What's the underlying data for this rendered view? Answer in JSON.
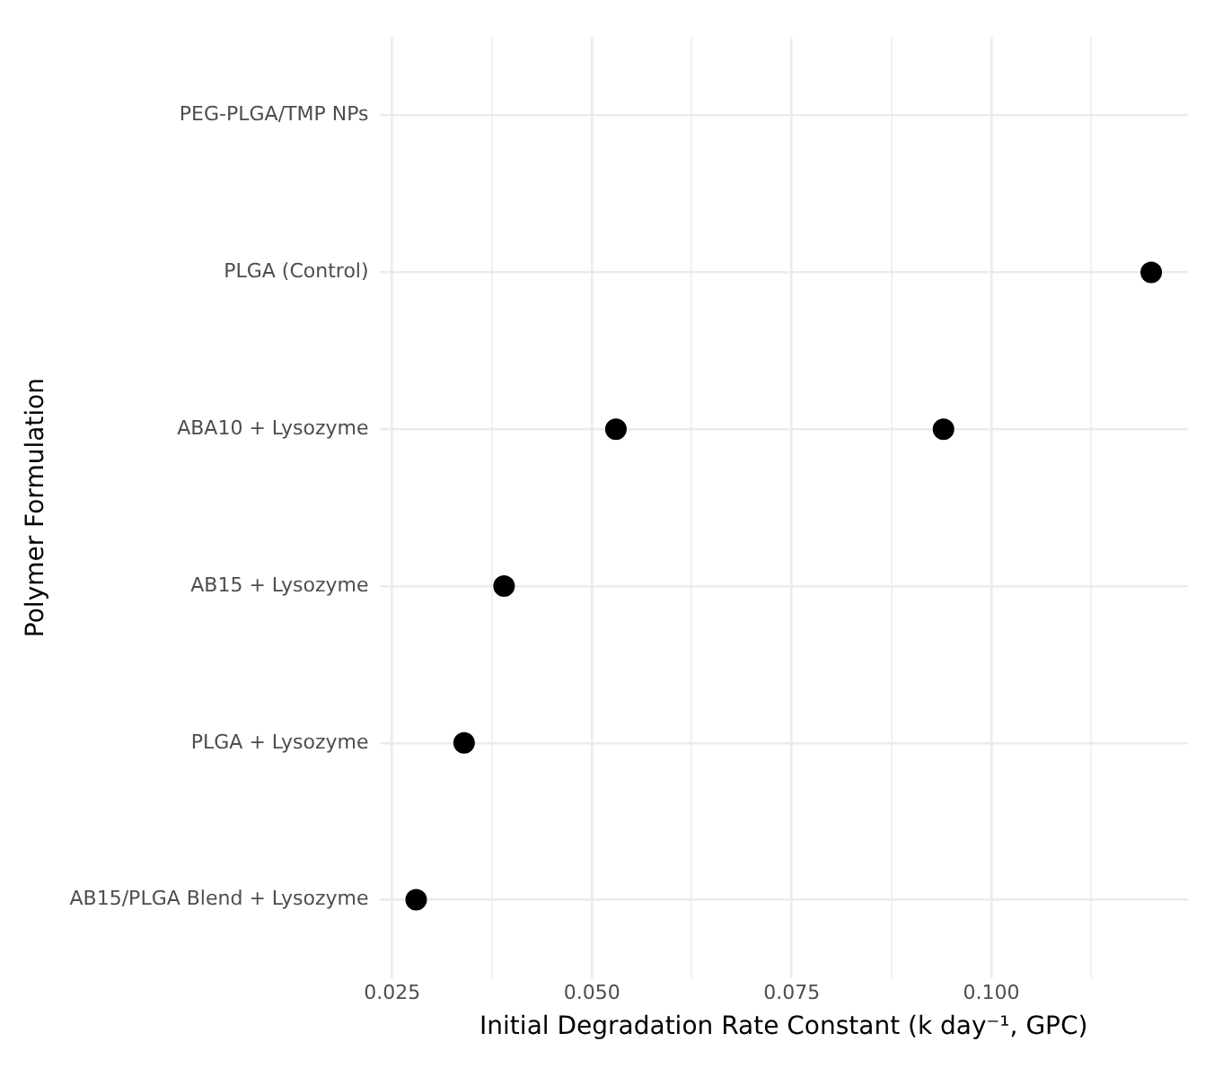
{
  "chart_data": {
    "type": "scatter",
    "orientation": "horizontal",
    "xlabel": "Initial Degradation Rate Constant (k day⁻¹, GPC)",
    "ylabel": "Polymer Formulation",
    "categories": [
      "PEG-PLGA/TMP NPs",
      "PLGA (Control)",
      "ABA10 + Lysozyme",
      "AB15 + Lysozyme",
      "PLGA + Lysozyme",
      "AB15/PLGA Blend + Lysozyme"
    ],
    "series": [
      {
        "color": "#000000",
        "values": [
          null,
          0.12,
          0.053,
          0.039,
          0.034,
          0.028
        ]
      },
      {
        "color": "#000000",
        "values": [
          null,
          null,
          0.094,
          null,
          null,
          null
        ]
      }
    ],
    "xlim": [
      0.0234,
      0.1246
    ],
    "xticks": [
      0.025,
      {
        "value": 0.0375,
        "label": null
      },
      {
        "value": 0.05,
        "label": "0.050"
      },
      {
        "value": 0.0625,
        "label": null
      },
      0.075,
      {
        "value": 0.0875,
        "label": null
      },
      {
        "value": 0.1,
        "label": "0.100"
      },
      {
        "value": 0.1125,
        "label": null
      }
    ],
    "grid": true,
    "legend": false,
    "marker": "circle"
  }
}
